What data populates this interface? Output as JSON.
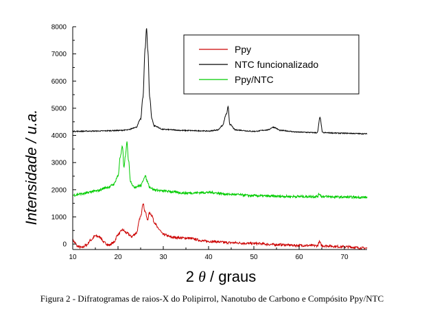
{
  "chart_data": {
    "type": "line",
    "xlabel_prefix": "2 ",
    "xlabel_symbol": "θ",
    "xlabel_suffix": " / graus",
    "ylabel": "Intensidade / u.a.",
    "xlim": [
      10,
      75
    ],
    "ylim": [
      -200,
      8000
    ],
    "x_ticks": [
      10,
      20,
      30,
      40,
      50,
      60,
      70
    ],
    "y_ticks": [
      0,
      1000,
      2000,
      3000,
      4000,
      5000,
      6000,
      7000,
      8000
    ],
    "grid": false,
    "legend_position": "top-right",
    "series": [
      {
        "name": "Ppy",
        "color": "#cc0000",
        "x": [
          10,
          10.5,
          11,
          12,
          13,
          14,
          15,
          16,
          17,
          18,
          19,
          20,
          21,
          22,
          23,
          24,
          25,
          25.5,
          26,
          26.5,
          27,
          27.5,
          28,
          29,
          30,
          32,
          35,
          40,
          45,
          50,
          55,
          60,
          64,
          64.5,
          65,
          70,
          75
        ],
        "y": [
          150,
          50,
          -80,
          -130,
          -40,
          150,
          300,
          260,
          50,
          -40,
          50,
          350,
          520,
          400,
          280,
          400,
          1000,
          1500,
          1200,
          900,
          1150,
          1050,
          800,
          550,
          350,
          250,
          220,
          100,
          50,
          20,
          -20,
          -50,
          -60,
          80,
          -60,
          -100,
          -150
        ]
      },
      {
        "name": "NTC funcionalizado",
        "color": "#000000",
        "x": [
          10,
          15,
          20,
          22,
          24,
          25,
          25.5,
          26,
          26.3,
          26.6,
          27,
          27.5,
          28,
          30,
          35,
          38,
          40,
          42,
          43,
          44,
          44.3,
          44.7,
          46,
          50,
          53,
          54.3,
          56,
          60,
          64,
          64.6,
          65.2,
          70,
          75
        ],
        "y": [
          4150,
          4160,
          4180,
          4200,
          4300,
          4600,
          5400,
          7200,
          7950,
          7100,
          5400,
          4600,
          4350,
          4220,
          4180,
          4170,
          4160,
          4200,
          4350,
          4800,
          5050,
          4400,
          4200,
          4150,
          4200,
          4300,
          4180,
          4120,
          4100,
          4650,
          4100,
          4080,
          4060
        ]
      },
      {
        "name": "Ppy/NTC",
        "color": "#00cc00",
        "x": [
          10,
          12,
          15,
          18,
          19,
          20,
          20.5,
          21,
          21.3,
          21.6,
          22,
          22.3,
          22.8,
          23.5,
          25,
          26,
          26.5,
          27,
          28,
          30,
          35,
          40,
          45,
          50,
          55,
          60,
          64,
          64.5,
          65,
          70,
          75
        ],
        "y": [
          1800,
          1850,
          1950,
          2100,
          2200,
          2500,
          3200,
          3600,
          2800,
          3200,
          3750,
          3100,
          2300,
          2100,
          2150,
          2500,
          2300,
          2100,
          2000,
          1950,
          1880,
          1900,
          1830,
          1780,
          1760,
          1750,
          1750,
          1850,
          1750,
          1730,
          1720
        ]
      }
    ]
  },
  "caption": "Figura 2 - Difratogramas de raios-X do Polipirrol, Nanotubo de Carbono e Compósito Ppy/NTC"
}
